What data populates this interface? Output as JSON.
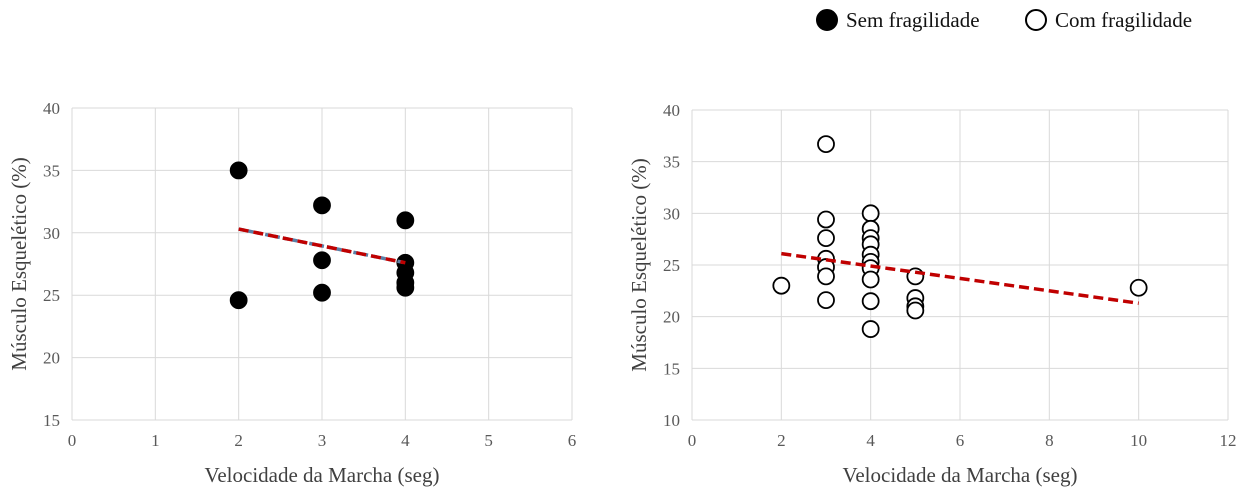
{
  "legend": {
    "items": [
      {
        "label": "Sem fragilidade",
        "marker": "filled-circle"
      },
      {
        "label": "Com fragilidade",
        "marker": "open-circle"
      }
    ]
  },
  "colors": {
    "trendline": "#c00000",
    "trendline_underlay": "#5b7fa6",
    "marker": "#000000",
    "grid": "#d9d9d9",
    "tick_text": "#595959"
  },
  "chart_data": [
    {
      "type": "scatter",
      "xlabel": "Velocidade da Marcha (seg)",
      "ylabel": "Músculo Esquelético (%)",
      "xlim": [
        0,
        6
      ],
      "ylim": [
        15,
        40
      ],
      "xticks": [
        0,
        1,
        2,
        3,
        4,
        5,
        6
      ],
      "yticks": [
        15,
        20,
        25,
        30,
        35,
        40
      ],
      "grid": true,
      "series": [
        {
          "name": "Sem fragilidade",
          "marker": "filled-circle",
          "points": [
            {
              "x": 2,
              "y": 35.0
            },
            {
              "x": 2,
              "y": 24.6
            },
            {
              "x": 3,
              "y": 32.2
            },
            {
              "x": 3,
              "y": 27.8
            },
            {
              "x": 3,
              "y": 25.2
            },
            {
              "x": 4,
              "y": 31.0
            },
            {
              "x": 4,
              "y": 27.6
            },
            {
              "x": 4,
              "y": 26.8
            },
            {
              "x": 4,
              "y": 26.0
            },
            {
              "x": 4,
              "y": 25.6
            }
          ]
        }
      ],
      "trendline": {
        "x": [
          2,
          4
        ],
        "y": [
          30.3,
          27.6
        ],
        "style": "dashed"
      }
    },
    {
      "type": "scatter",
      "xlabel": "Velocidade da Marcha (seg)",
      "ylabel": "Músculo Esquelético (%)",
      "xlim": [
        0,
        12
      ],
      "ylim": [
        10,
        40
      ],
      "xticks": [
        0,
        2,
        4,
        6,
        8,
        10,
        12
      ],
      "yticks": [
        10,
        15,
        20,
        25,
        30,
        35,
        40
      ],
      "grid": true,
      "series": [
        {
          "name": "Com fragilidade",
          "marker": "open-circle",
          "points": [
            {
              "x": 2,
              "y": 23.0
            },
            {
              "x": 3,
              "y": 36.7
            },
            {
              "x": 3,
              "y": 29.4
            },
            {
              "x": 3,
              "y": 27.6
            },
            {
              "x": 3,
              "y": 25.6
            },
            {
              "x": 3,
              "y": 24.8
            },
            {
              "x": 3,
              "y": 23.9
            },
            {
              "x": 3,
              "y": 21.6
            },
            {
              "x": 4,
              "y": 30.0
            },
            {
              "x": 4,
              "y": 28.5
            },
            {
              "x": 4,
              "y": 27.6
            },
            {
              "x": 4,
              "y": 27.0
            },
            {
              "x": 4,
              "y": 26.0
            },
            {
              "x": 4,
              "y": 25.3
            },
            {
              "x": 4,
              "y": 24.7
            },
            {
              "x": 4,
              "y": 23.6
            },
            {
              "x": 4,
              "y": 21.5
            },
            {
              "x": 4,
              "y": 18.8
            },
            {
              "x": 5,
              "y": 23.9
            },
            {
              "x": 5,
              "y": 21.8
            },
            {
              "x": 5,
              "y": 21.0
            },
            {
              "x": 5,
              "y": 20.6
            },
            {
              "x": 10,
              "y": 22.8
            }
          ]
        }
      ],
      "trendline": {
        "x": [
          2,
          10
        ],
        "y": [
          26.1,
          21.3
        ],
        "style": "dashed"
      }
    }
  ]
}
